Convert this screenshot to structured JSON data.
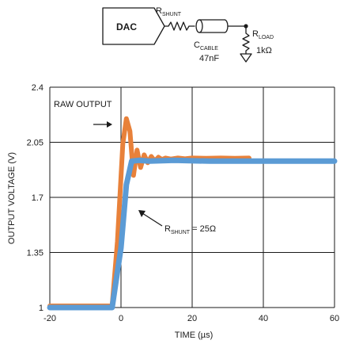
{
  "schematic": {
    "dac_label": "DAC",
    "rshunt_main": "R",
    "rshunt_sub": "SHUNT",
    "ccable_main": "C",
    "ccable_sub": "CABLE",
    "ccable_value": "47nF",
    "rload_main": "R",
    "rload_sub": "LOAD",
    "rload_value": "1kΩ"
  },
  "chart_data": {
    "type": "line",
    "title": "",
    "xlabel": "TIME (µs)",
    "ylabel": "OUTPUT VOLTAGE (V)",
    "xlim": [
      -20,
      60
    ],
    "ylim": [
      1,
      2.4
    ],
    "x_ticks": [
      -20,
      0,
      20,
      40,
      60
    ],
    "x_tick_labels": [
      "-20",
      "0",
      "20",
      "40",
      "60"
    ],
    "y_ticks": [
      1,
      1.35,
      1.7,
      2.05,
      2.4
    ],
    "y_tick_labels": [
      "1",
      "1.35",
      "1.7",
      "2.05",
      "2.4"
    ],
    "grid": true,
    "series": [
      {
        "name": "RAW OUTPUT",
        "color": "#e8813a",
        "x": [
          -20,
          -5,
          -2.5,
          -1.0,
          0.5,
          1.5,
          2.5,
          3.5,
          4.5,
          5.5,
          6.5,
          7.5,
          8.5,
          9.5,
          10.5,
          11.5,
          12.5,
          14,
          16,
          18,
          20,
          24,
          28,
          32,
          36
        ],
        "y": [
          1.01,
          1.01,
          1.01,
          1.42,
          2.04,
          2.2,
          2.12,
          1.84,
          2.0,
          1.89,
          1.97,
          1.92,
          1.96,
          1.93,
          1.955,
          1.94,
          1.95,
          1.943,
          1.95,
          1.945,
          1.95,
          1.948,
          1.95,
          1.948,
          1.95
        ]
      },
      {
        "name": "R SHUNT = 25Ω",
        "color": "#5b9bd5",
        "x": [
          -20,
          -2.5,
          0,
          1.5,
          3,
          5,
          8,
          15,
          25,
          40,
          60
        ],
        "y": [
          1.0,
          1.0,
          1.38,
          1.78,
          1.93,
          1.935,
          1.93,
          1.935,
          1.93,
          1.93,
          1.93
        ]
      }
    ],
    "annotations": [
      {
        "text": "RAW OUTPUT",
        "target": "RAW OUTPUT"
      },
      {
        "main": "R",
        "sub": "SHUNT",
        "suffix": " = 25Ω",
        "target": "R SHUNT = 25Ω"
      }
    ]
  }
}
